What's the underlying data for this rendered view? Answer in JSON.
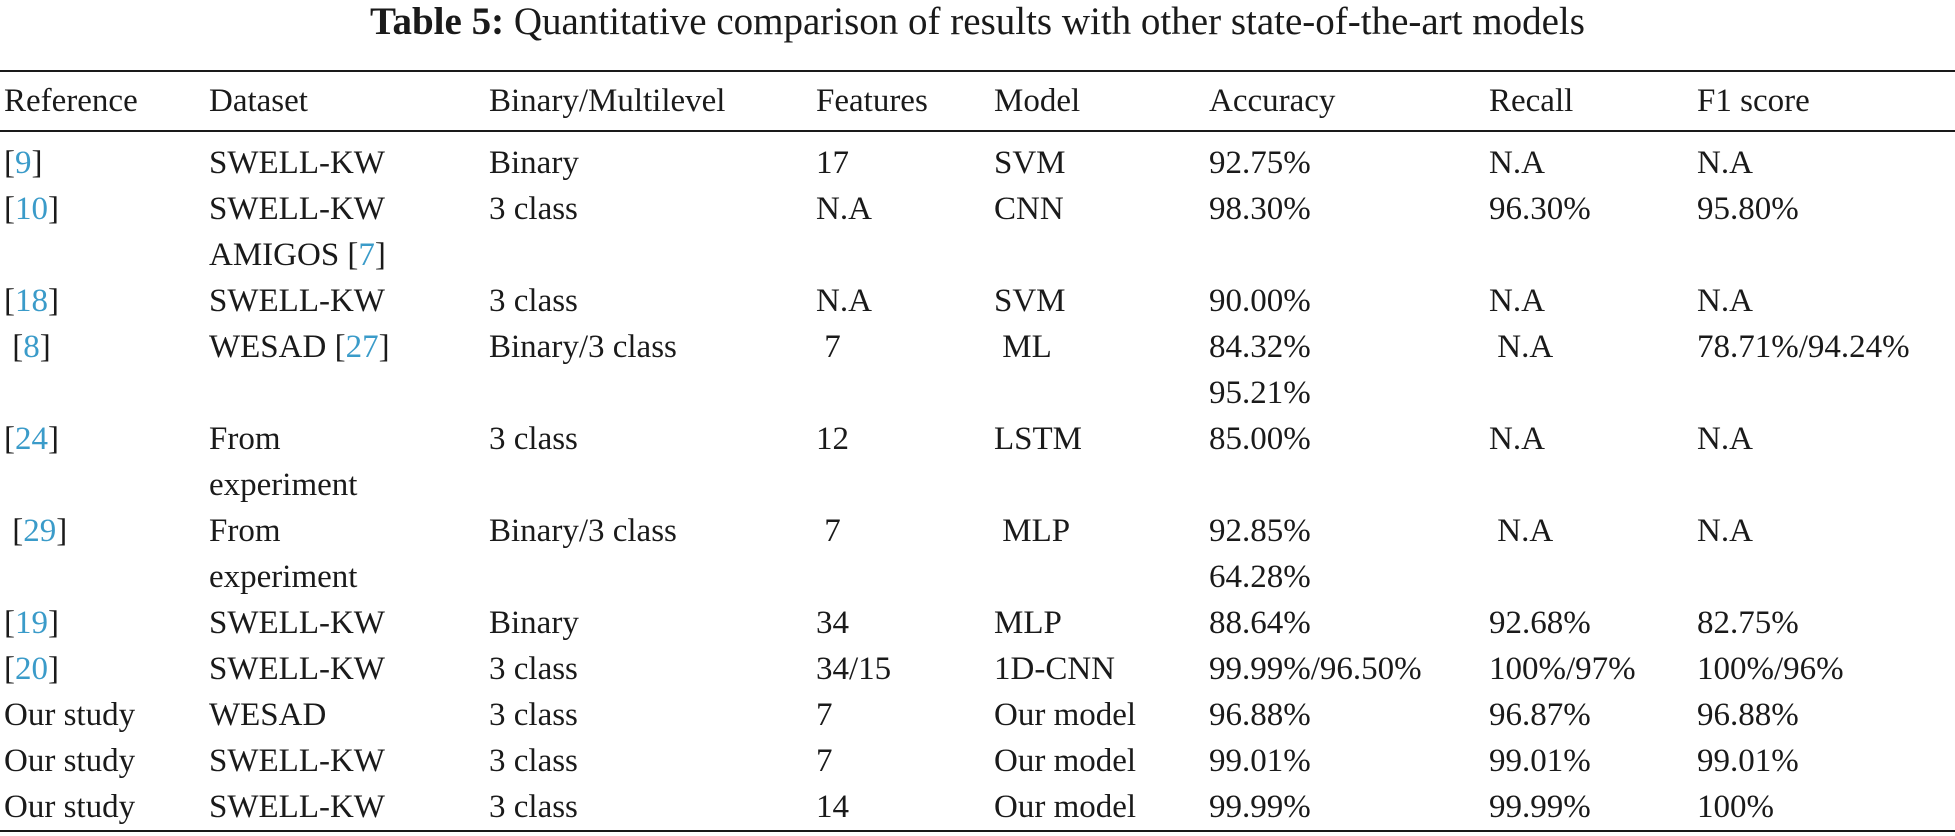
{
  "caption": {
    "label": "Table 5:",
    "text": "Quantitative comparison of results with other state-of-the-art models"
  },
  "headers": [
    "Reference",
    "Dataset",
    "Binary/Multilevel",
    "Features",
    "Model",
    "Accuracy",
    "Recall",
    "F1 score"
  ],
  "rows": [
    {
      "ref_pre": "[",
      "ref": "9",
      "ref_post": "]",
      "dataset": [
        "SWELL-KW"
      ],
      "binary": "Binary",
      "features": "17",
      "model": "SVM",
      "accuracy": [
        "92.75%"
      ],
      "recall": "N.A",
      "f1": "N.A"
    },
    {
      "ref_pre": "[",
      "ref": "10",
      "ref_post": "]",
      "dataset": [
        "SWELL-KW",
        "AMIGOS [7]"
      ],
      "binary": "3 class",
      "features": "N.A",
      "model": "CNN",
      "accuracy": [
        "98.30%"
      ],
      "recall": "96.30%",
      "f1": "95.80%"
    },
    {
      "ref_pre": "[",
      "ref": "18",
      "ref_post": "]",
      "dataset": [
        "SWELL-KW"
      ],
      "binary": "3 class",
      "features": "N.A",
      "model": "SVM",
      "accuracy": [
        "90.00%"
      ],
      "recall": "N.A",
      "f1": "N.A"
    },
    {
      "ref_pre": " [",
      "ref": "8",
      "ref_post": "]",
      "dataset": [
        "WESAD [27]"
      ],
      "binary": "Binary/3 class",
      "features": " 7",
      "model": " ML",
      "accuracy": [
        "84.32%",
        "95.21%"
      ],
      "recall": " N.A",
      "f1": "78.71%/94.24%"
    },
    {
      "ref_pre": "[",
      "ref": "24",
      "ref_post": "]",
      "dataset": [
        "From",
        "experiment"
      ],
      "binary": "3 class",
      "features": "12",
      "model": "LSTM",
      "accuracy": [
        "85.00%"
      ],
      "recall": "N.A",
      "f1": "N.A"
    },
    {
      "ref_pre": " [",
      "ref": "29",
      "ref_post": "]",
      "dataset": [
        "From",
        "experiment"
      ],
      "binary": "Binary/3 class",
      "features": " 7",
      "model": " MLP",
      "accuracy": [
        "92.85%",
        "64.28%"
      ],
      "recall": " N.A",
      "f1": "N.A"
    },
    {
      "ref_pre": "[",
      "ref": "19",
      "ref_post": "]",
      "dataset": [
        "SWELL-KW"
      ],
      "binary": "Binary",
      "features": "34",
      "model": "MLP",
      "accuracy": [
        "88.64%"
      ],
      "recall": "92.68%",
      "f1": "82.75%"
    },
    {
      "ref_pre": "[",
      "ref": "20",
      "ref_post": "]",
      "dataset": [
        "SWELL-KW"
      ],
      "binary": "3 class",
      "features": "34/15",
      "model": "1D-CNN",
      "accuracy": [
        "99.99%/96.50%"
      ],
      "recall": "100%/97%",
      "f1": "100%/96%"
    },
    {
      "ref_pre": "Our study",
      "ref": "",
      "ref_post": "",
      "dataset": [
        "WESAD"
      ],
      "binary": "3 class",
      "features": "7",
      "model": "Our model",
      "accuracy": [
        "96.88%"
      ],
      "recall": "96.87%",
      "f1": "96.88%"
    },
    {
      "ref_pre": "Our study",
      "ref": "",
      "ref_post": "",
      "dataset": [
        "SWELL-KW"
      ],
      "binary": "3 class",
      "features": "7",
      "model": "Our model",
      "accuracy": [
        "99.01%"
      ],
      "recall": "99.01%",
      "f1": "99.01%"
    },
    {
      "ref_pre": "Our study",
      "ref": "",
      "ref_post": "",
      "dataset": [
        "SWELL-KW"
      ],
      "binary": "3 class",
      "features": "14",
      "model": "Our model",
      "accuracy": [
        "99.99%"
      ],
      "recall": "99.99%",
      "f1": "100%"
    }
  ]
}
